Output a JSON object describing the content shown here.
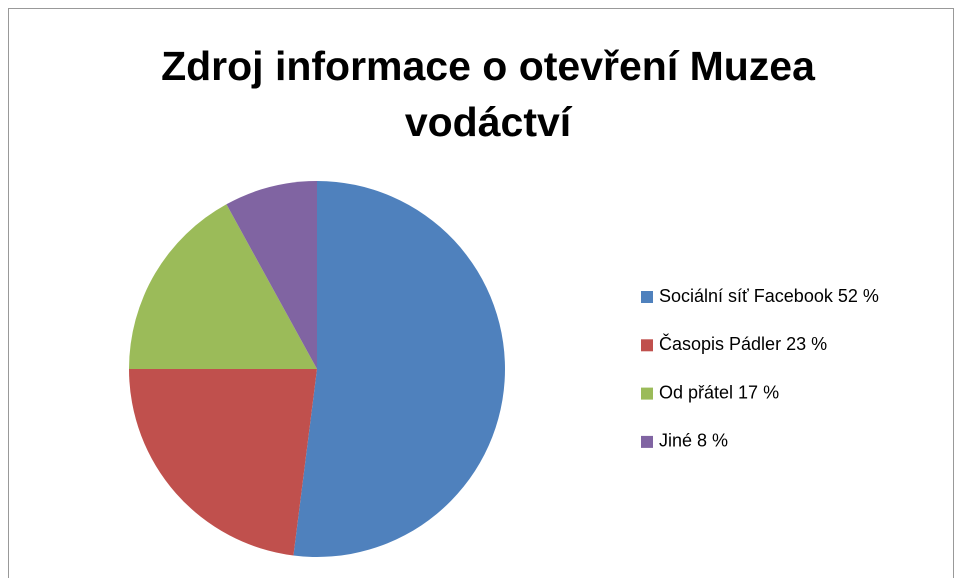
{
  "chart_data": {
    "type": "pie",
    "title": "Zdroj informace o otevření Muzea vodáctví",
    "categories": [
      "Sociální síť Facebook 52 %",
      "Časopis Pádler 23 %",
      "Od přátel 17 %",
      "Jiné 8 %"
    ],
    "values": [
      52,
      23,
      17,
      8
    ],
    "colors": [
      "#4f81bd",
      "#c0504d",
      "#9bbb59",
      "#8064a2"
    ],
    "legend": "right"
  }
}
